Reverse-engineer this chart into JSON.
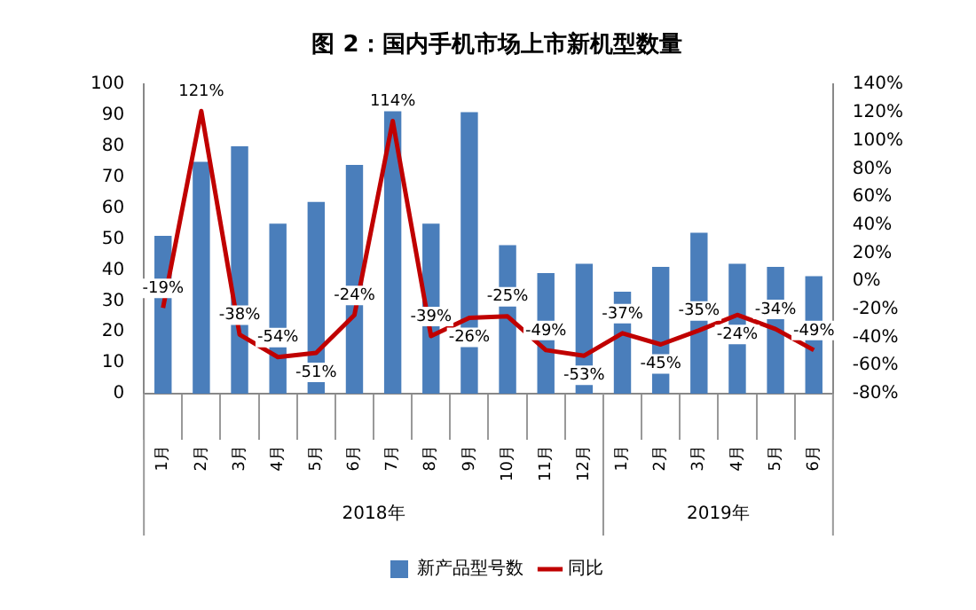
{
  "chart_data": {
    "type": "bar",
    "title": "图 2：国内手机市场上市新机型数量",
    "categories": [
      "1月",
      "2月",
      "3月",
      "4月",
      "5月",
      "6月",
      "7月",
      "8月",
      "9月",
      "10月",
      "11月",
      "12月",
      "1月",
      "2月",
      "3月",
      "4月",
      "5月",
      "6月"
    ],
    "series": [
      {
        "name": "新产品型号数",
        "color": "#4a7ebb",
        "values": [
          51,
          75,
          80,
          55,
          62,
          74,
          92,
          55,
          91,
          48,
          39,
          42,
          33,
          41,
          52,
          42,
          41,
          38
        ]
      },
      {
        "name": "同比",
        "type": "line",
        "axis": "y2",
        "color": "#c00000",
        "values": [
          -19,
          121,
          -38,
          -54,
          -51,
          -24,
          114,
          -39,
          -26,
          -25,
          -49,
          -53,
          -37,
          -45,
          -35,
          -24,
          -34,
          -49
        ],
        "value_labels": [
          "-19%",
          "121%",
          "-38%",
          "-54%",
          "-51%",
          "-24%",
          "114%",
          "-39%",
          "-26%",
          "-25%",
          "-49%",
          "-53%",
          "-37%",
          "-45%",
          "-35%",
          "-24%",
          "-34%",
          "-49%"
        ]
      }
    ],
    "annotations": [
      "2018年",
      "2019年"
    ],
    "ylim": [
      0,
      100
    ],
    "yticks": [
      0,
      10,
      20,
      30,
      40,
      50,
      60,
      70,
      80,
      90,
      100
    ],
    "y2lim": [
      -80,
      140
    ],
    "y2ticks": [
      {
        "value": -80,
        "label": "-80%"
      },
      {
        "value": -60,
        "label": "-60%"
      },
      {
        "value": -40,
        "label": "-40%"
      },
      {
        "value": -20,
        "label": "-20%"
      },
      {
        "value": 0,
        "label": "0%"
      },
      {
        "value": 20,
        "label": "20%"
      },
      {
        "value": 40,
        "label": "40%"
      },
      {
        "value": 60,
        "label": "60%"
      },
      {
        "value": 80,
        "label": "80%"
      },
      {
        "value": 100,
        "label": "100%"
      },
      {
        "value": 120,
        "label": "120%"
      },
      {
        "value": 140,
        "label": "140%"
      }
    ],
    "legend": "bottom",
    "grid": false,
    "marker": "none",
    "line_style": "solid"
  }
}
